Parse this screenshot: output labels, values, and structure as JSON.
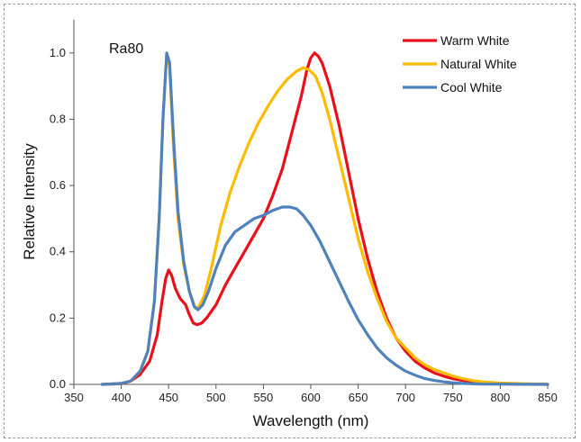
{
  "chart_data": {
    "type": "line",
    "title": "",
    "annotation": "Ra80",
    "xlabel": "Wavelength (nm)",
    "ylabel": "Relative Intensity",
    "xlim": [
      350,
      850
    ],
    "ylim": [
      0,
      1.1
    ],
    "x_ticks": [
      "350",
      "400",
      "450",
      "500",
      "550",
      "600",
      "650",
      "700",
      "750",
      "800",
      "850"
    ],
    "y_ticks": [
      "0.0",
      "0.2",
      "0.4",
      "0.6",
      "0.8",
      "1.0"
    ],
    "legend_position": "top-right",
    "grid": false,
    "series": [
      {
        "name": "Warm White",
        "color": "#e8101a",
        "points": [
          [
            380,
            0
          ],
          [
            400,
            0.002
          ],
          [
            410,
            0.01
          ],
          [
            420,
            0.03
          ],
          [
            430,
            0.07
          ],
          [
            438,
            0.15
          ],
          [
            443,
            0.25
          ],
          [
            447,
            0.32
          ],
          [
            450,
            0.345
          ],
          [
            453,
            0.33
          ],
          [
            457,
            0.29
          ],
          [
            462,
            0.26
          ],
          [
            468,
            0.24
          ],
          [
            472,
            0.21
          ],
          [
            476,
            0.185
          ],
          [
            480,
            0.18
          ],
          [
            485,
            0.185
          ],
          [
            490,
            0.2
          ],
          [
            500,
            0.24
          ],
          [
            510,
            0.3
          ],
          [
            520,
            0.35
          ],
          [
            530,
            0.4
          ],
          [
            540,
            0.45
          ],
          [
            550,
            0.5
          ],
          [
            560,
            0.57
          ],
          [
            570,
            0.65
          ],
          [
            580,
            0.76
          ],
          [
            590,
            0.87
          ],
          [
            596,
            0.95
          ],
          [
            600,
            0.985
          ],
          [
            604,
            1.0
          ],
          [
            608,
            0.99
          ],
          [
            612,
            0.97
          ],
          [
            620,
            0.9
          ],
          [
            630,
            0.78
          ],
          [
            640,
            0.64
          ],
          [
            650,
            0.5
          ],
          [
            660,
            0.38
          ],
          [
            670,
            0.28
          ],
          [
            680,
            0.2
          ],
          [
            690,
            0.14
          ],
          [
            700,
            0.1
          ],
          [
            710,
            0.07
          ],
          [
            720,
            0.05
          ],
          [
            730,
            0.035
          ],
          [
            740,
            0.025
          ],
          [
            750,
            0.017
          ],
          [
            760,
            0.012
          ],
          [
            770,
            0.008
          ],
          [
            780,
            0.005
          ],
          [
            800,
            0.002
          ],
          [
            850,
            0
          ]
        ]
      },
      {
        "name": "Natural White",
        "color": "#ffbb00",
        "points": [
          [
            380,
            0
          ],
          [
            400,
            0.003
          ],
          [
            410,
            0.01
          ],
          [
            420,
            0.04
          ],
          [
            428,
            0.1
          ],
          [
            435,
            0.25
          ],
          [
            440,
            0.5
          ],
          [
            444,
            0.8
          ],
          [
            448,
            1.0
          ],
          [
            451,
            0.96
          ],
          [
            455,
            0.72
          ],
          [
            460,
            0.5
          ],
          [
            466,
            0.36
          ],
          [
            472,
            0.28
          ],
          [
            478,
            0.23
          ],
          [
            482,
            0.235
          ],
          [
            488,
            0.27
          ],
          [
            495,
            0.35
          ],
          [
            505,
            0.48
          ],
          [
            515,
            0.58
          ],
          [
            525,
            0.66
          ],
          [
            535,
            0.73
          ],
          [
            545,
            0.79
          ],
          [
            555,
            0.84
          ],
          [
            565,
            0.885
          ],
          [
            575,
            0.92
          ],
          [
            585,
            0.945
          ],
          [
            592,
            0.955
          ],
          [
            598,
            0.95
          ],
          [
            605,
            0.93
          ],
          [
            612,
            0.88
          ],
          [
            620,
            0.8
          ],
          [
            630,
            0.68
          ],
          [
            640,
            0.56
          ],
          [
            650,
            0.44
          ],
          [
            660,
            0.34
          ],
          [
            670,
            0.26
          ],
          [
            680,
            0.19
          ],
          [
            690,
            0.14
          ],
          [
            700,
            0.11
          ],
          [
            710,
            0.08
          ],
          [
            720,
            0.06
          ],
          [
            730,
            0.045
          ],
          [
            740,
            0.035
          ],
          [
            750,
            0.025
          ],
          [
            760,
            0.018
          ],
          [
            770,
            0.012
          ],
          [
            780,
            0.008
          ],
          [
            800,
            0.004
          ],
          [
            850,
            0
          ]
        ]
      },
      {
        "name": "Cool White",
        "color": "#4f81bd",
        "points": [
          [
            380,
            0
          ],
          [
            400,
            0.003
          ],
          [
            410,
            0.01
          ],
          [
            420,
            0.04
          ],
          [
            428,
            0.1
          ],
          [
            435,
            0.25
          ],
          [
            440,
            0.5
          ],
          [
            444,
            0.8
          ],
          [
            448,
            1.0
          ],
          [
            451,
            0.97
          ],
          [
            455,
            0.75
          ],
          [
            460,
            0.52
          ],
          [
            466,
            0.37
          ],
          [
            472,
            0.28
          ],
          [
            477,
            0.235
          ],
          [
            481,
            0.225
          ],
          [
            486,
            0.24
          ],
          [
            492,
            0.28
          ],
          [
            500,
            0.35
          ],
          [
            510,
            0.42
          ],
          [
            520,
            0.46
          ],
          [
            530,
            0.48
          ],
          [
            540,
            0.5
          ],
          [
            550,
            0.51
          ],
          [
            560,
            0.525
          ],
          [
            570,
            0.535
          ],
          [
            578,
            0.535
          ],
          [
            585,
            0.53
          ],
          [
            592,
            0.51
          ],
          [
            600,
            0.48
          ],
          [
            610,
            0.43
          ],
          [
            620,
            0.37
          ],
          [
            630,
            0.31
          ],
          [
            640,
            0.25
          ],
          [
            650,
            0.195
          ],
          [
            660,
            0.15
          ],
          [
            670,
            0.11
          ],
          [
            680,
            0.08
          ],
          [
            690,
            0.058
          ],
          [
            700,
            0.04
          ],
          [
            710,
            0.028
          ],
          [
            720,
            0.018
          ],
          [
            730,
            0.012
          ],
          [
            740,
            0.008
          ],
          [
            750,
            0.005
          ],
          [
            760,
            0.003
          ],
          [
            780,
            0.001
          ],
          [
            850,
            0
          ]
        ]
      }
    ]
  }
}
